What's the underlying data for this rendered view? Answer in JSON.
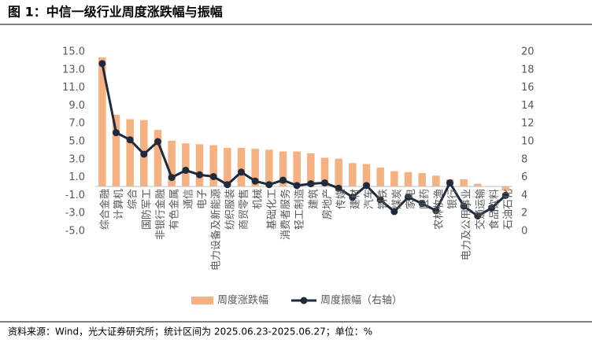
{
  "chart_data": {
    "type": "bar-line",
    "title": "图 1：中信一级行业周度涨跌幅与振幅",
    "source": "资料来源：Wind，光大证券研究所；统计区间为 2025.06.23-2025.06.27；单位：%",
    "categories": [
      "综合金融",
      "计算机",
      "综合",
      "国防军工",
      "非银行金融",
      "有色金属",
      "通信",
      "电子",
      "电力设备及新能源",
      "纺织服装",
      "商贸零售",
      "机械",
      "基础化工",
      "消费者服务",
      "轻工制造",
      "建筑",
      "房地产",
      "传媒",
      "建材",
      "汽车",
      "钢铁",
      "煤炭",
      "家电",
      "医药",
      "农林牧渔",
      "银行",
      "电力及公用事业",
      "交通运输",
      "食品饮料",
      "石油石化"
    ],
    "series": [
      {
        "name": "周度涨跌幅",
        "type": "bar",
        "color": "#f4b183",
        "values": [
          14.4,
          8.0,
          7.5,
          7.4,
          6.3,
          5.1,
          4.8,
          4.7,
          4.6,
          4.3,
          4.3,
          4.2,
          4.1,
          3.9,
          3.9,
          3.7,
          3.2,
          3.1,
          2.6,
          2.5,
          2.1,
          1.7,
          1.6,
          1.5,
          1.2,
          0.8,
          0.8,
          0.3,
          0.05,
          -0.5
        ]
      },
      {
        "name": "周度振幅（右轴）",
        "type": "line",
        "axis": "y2",
        "color": "#1f2a3c",
        "values": [
          18.7,
          11.0,
          10.2,
          8.6,
          10.0,
          6.0,
          6.8,
          6.3,
          6.1,
          5.2,
          6.6,
          5.6,
          5.2,
          5.7,
          5.1,
          5.3,
          5.4,
          4.8,
          3.8,
          5.1,
          3.5,
          2.2,
          3.8,
          3.1,
          2.3,
          5.4,
          2.8,
          1.7,
          2.6,
          4.0
        ]
      }
    ],
    "ylim": [
      -5,
      15
    ],
    "yticks": [
      {
        "value": -5,
        "label": "-5.0"
      },
      {
        "value": -3,
        "label": "-3.0"
      },
      {
        "value": -1,
        "label": "-1.0"
      },
      {
        "value": 1,
        "label": "1.0"
      },
      {
        "value": 3,
        "label": "3.0"
      },
      {
        "value": 5,
        "label": "5.0"
      },
      {
        "value": 7,
        "label": "7.0"
      },
      {
        "value": 9,
        "label": "9.0"
      },
      {
        "value": 11,
        "label": "11.0"
      },
      {
        "value": 13,
        "label": "13.0"
      },
      {
        "value": 15,
        "label": "15.0"
      }
    ],
    "y2lim": [
      0,
      20
    ],
    "y2ticks": [
      0,
      2,
      4,
      6,
      8,
      10,
      12,
      14,
      16,
      18,
      20
    ],
    "legend": "bottom"
  }
}
